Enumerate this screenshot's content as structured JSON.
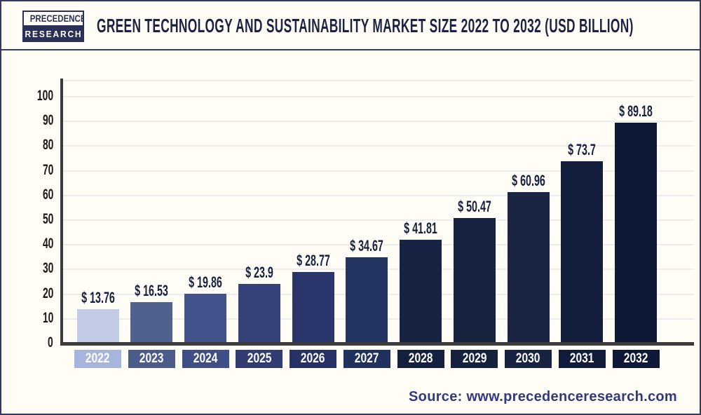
{
  "header": {
    "logo": {
      "line1": "PRECEDENCE",
      "line2": "RESEARCH"
    },
    "title": "GREEN TECHNOLOGY AND SUSTAINABILITY MARKET SIZE 2022 TO 2032 (USD BILLION)"
  },
  "chart_data": {
    "type": "bar",
    "title": "Green Technology and Sustainability Market Size 2022 to 2032 (USD Billion)",
    "unit": "USD Billion",
    "categories": [
      "2022",
      "2023",
      "2024",
      "2025",
      "2026",
      "2027",
      "2028",
      "2029",
      "2030",
      "2031",
      "2032"
    ],
    "values": [
      13.76,
      16.53,
      19.86,
      23.9,
      28.77,
      34.67,
      41.81,
      50.47,
      60.96,
      73.7,
      89.18
    ],
    "value_labels": [
      "$ 13.76",
      "$ 16.53",
      "$ 19.86",
      "$ 23.9",
      "$ 28.77",
      "$ 34.67",
      "$ 41.81",
      "$ 50.47",
      "$ 60.96",
      "$ 73.7",
      "$ 89.18"
    ],
    "xlabel": "",
    "ylabel": "",
    "ylim": [
      0,
      100
    ],
    "yticks": [
      0,
      10,
      20,
      30,
      40,
      50,
      60,
      70,
      80,
      90,
      100
    ],
    "grid": "horizontal-major",
    "legend": "none",
    "bar_colors": [
      "#c3cce7",
      "#50618e",
      "#44528b",
      "#35427a",
      "#2a366b",
      "#243462",
      "#162342",
      "#172440",
      "#192542",
      "#121e3b",
      "#0d1937"
    ],
    "tick_box_colors": [
      "#a7b4dc",
      "#4b5c8b",
      "#404e86",
      "#303d73",
      "#263265",
      "#21315e",
      "#14203e",
      "#15223e",
      "#172340",
      "#101c39",
      "#0c1835"
    ]
  },
  "source": {
    "label": "Source: www.precedenceresearch.com"
  },
  "colors": {
    "background": "#fffdf6",
    "frame_border": "#333a5c",
    "axis": "#3b3b3b",
    "gridline": "#ececec",
    "title_text": "#1c2342",
    "value_text": "#16203c",
    "ytick_text": "#1a1a1a",
    "xtick_text": "#ffffff",
    "source_text": "#2f3b7c",
    "logo_navy": "#2a3157"
  }
}
